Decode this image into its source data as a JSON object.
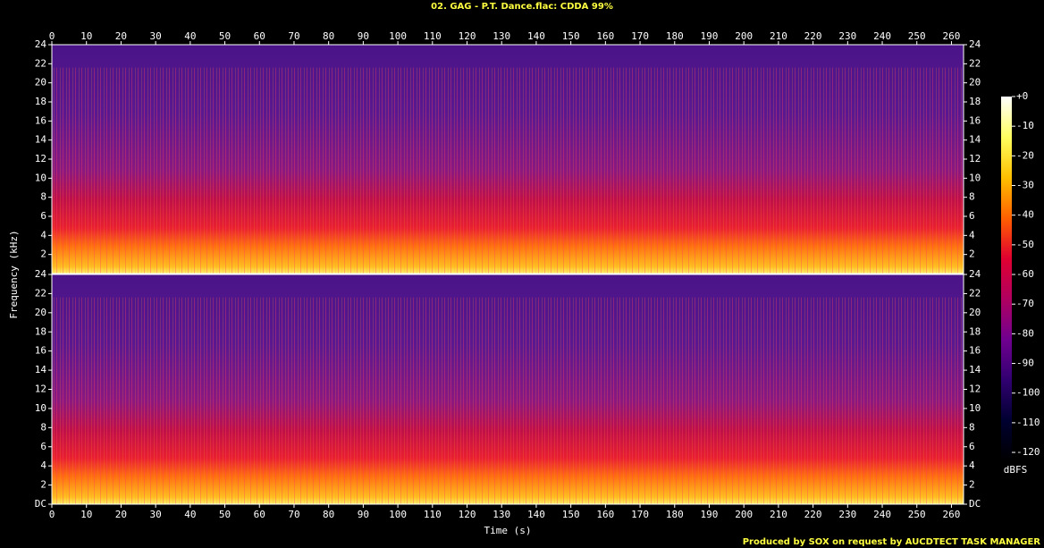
{
  "chart_data": {
    "type": "spectrogram",
    "title": "02. GAG - P.T. Dance.flac: CDDA 99%",
    "x_label": "Time (s)",
    "y_label": "Frequency (kHz)",
    "footer": "Produced by SOX on request by AUCDTECT TASK MANAGER",
    "xlim": [
      0,
      263.5
    ],
    "xticks": [
      0,
      10,
      20,
      30,
      40,
      50,
      60,
      70,
      80,
      90,
      100,
      110,
      120,
      130,
      140,
      150,
      160,
      170,
      180,
      190,
      200,
      210,
      220,
      230,
      240,
      250,
      260
    ],
    "ylim": [
      0,
      24
    ],
    "panels": [
      {
        "yticks": [
          2,
          4,
          6,
          8,
          10,
          12,
          14,
          16,
          18,
          20,
          22,
          24
        ]
      },
      {
        "yticks": [
          {
            "value": 0,
            "label": "DC"
          },
          2,
          4,
          6,
          8,
          10,
          12,
          14,
          16,
          18,
          20,
          22,
          24
        ]
      }
    ],
    "colorbar": {
      "label": "dBFS",
      "lim": [
        -123,
        0
      ],
      "ticks": [
        {
          "value": 0,
          "label": "+0"
        },
        -10,
        -20,
        -30,
        -40,
        -50,
        -60,
        -70,
        -80,
        -90,
        -100,
        -110,
        -120
      ],
      "colormap": [
        "#ffffff",
        "#ffff60",
        "#ffc000",
        "#ff6000",
        "#e00030",
        "#b00060",
        "#700090",
        "#300070",
        "#000030",
        "#000000"
      ]
    }
  }
}
